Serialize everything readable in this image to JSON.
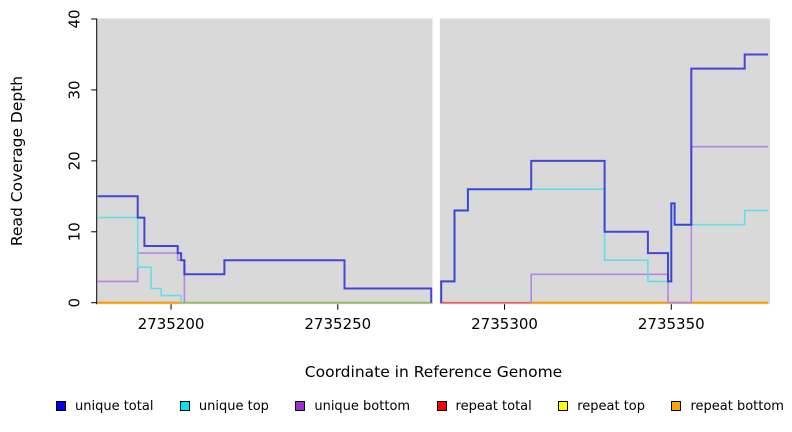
{
  "chart_data": {
    "type": "line",
    "subtype": "step-coverage",
    "title": "",
    "xlabel": "Coordinate in Reference Genome",
    "ylabel": "Read Coverage Depth",
    "panel_bg": "#d9d9d9",
    "x_axis": {
      "ticks": [
        2735200,
        2735250,
        2735300,
        2735350
      ],
      "range": [
        2735177.7,
        2735379.6
      ]
    },
    "y_axis": {
      "ticks": [
        0,
        10,
        20,
        30,
        40
      ],
      "range": [
        -0.21,
        40.07
      ]
    },
    "no_data_gap": {
      "from": 2735278,
      "to": 2735281
    },
    "series": [
      {
        "name": "unique total",
        "color": "#2b2bd5",
        "legend_color": "#0000ee",
        "width": 2,
        "segments": [
          [
            [
              2735178,
              15
            ],
            [
              2735190,
              12
            ],
            [
              2735192,
              8
            ],
            [
              2735202,
              7
            ],
            [
              2735203,
              6
            ],
            [
              2735204,
              4
            ],
            [
              2735216,
              6
            ],
            [
              2735252,
              2
            ],
            [
              2735278,
              0
            ]
          ],
          [
            [
              2735281,
              0
            ],
            [
              2735281,
              3
            ],
            [
              2735285,
              13
            ],
            [
              2735289,
              16
            ],
            [
              2735308,
              20
            ],
            [
              2735330,
              10
            ],
            [
              2735343,
              7
            ],
            [
              2735349,
              3
            ],
            [
              2735350,
              14
            ],
            [
              2735351,
              11
            ],
            [
              2735356,
              33
            ],
            [
              2735372,
              35
            ],
            [
              2735379,
              35
            ]
          ]
        ]
      },
      {
        "name": "unique top",
        "color": "#63dfe7",
        "legend_color": "#00e5ee",
        "width": 1.6,
        "segments": [
          [
            [
              2735178,
              12
            ],
            [
              2735190,
              5
            ],
            [
              2735194,
              2
            ],
            [
              2735197,
              1
            ],
            [
              2735203,
              0
            ]
          ],
          [
            [
              2735281,
              0
            ],
            [
              2735281,
              3
            ],
            [
              2735285,
              13
            ],
            [
              2735289,
              16
            ],
            [
              2735330,
              6
            ],
            [
              2735343,
              3
            ],
            [
              2735350,
              14
            ],
            [
              2735351,
              11
            ],
            [
              2735372,
              13
            ],
            [
              2735379,
              13
            ]
          ]
        ]
      },
      {
        "name": "unique bottom",
        "color": "#b289e2",
        "legend_color": "#9932cc",
        "width": 1.6,
        "segments": [
          [
            [
              2735178,
              3
            ],
            [
              2735190,
              7
            ],
            [
              2735202,
              6
            ],
            [
              2735204,
              0
            ]
          ],
          [
            [
              2735308,
              0
            ],
            [
              2735308,
              4
            ],
            [
              2735349,
              0
            ],
            [
              2735356,
              0
            ],
            [
              2735356,
              22
            ],
            [
              2735379,
              22
            ]
          ]
        ]
      },
      {
        "name": "repeat total",
        "color": "#ff0000",
        "legend_color": "#ff0000",
        "width": 1.4,
        "segments": [
          [
            [
              2735178,
              0
            ],
            [
              2735379,
              0
            ]
          ]
        ]
      },
      {
        "name": "repeat top",
        "color": "#ffff00",
        "legend_color": "#ffff00",
        "width": 1.4,
        "segments": [
          [
            [
              2735178,
              0
            ],
            [
              2735379,
              0
            ]
          ]
        ]
      },
      {
        "name": "repeat bottom",
        "color": "#ff9c00",
        "legend_color": "#ffa500",
        "width": 1.8,
        "segments": [
          [
            [
              2735178,
              0
            ],
            [
              2735379,
              0
            ]
          ]
        ]
      }
    ],
    "baseline_overlay": [
      {
        "from": 2735178,
        "to": 2735203,
        "color": "#ff9c00",
        "width": 1.8
      },
      {
        "from": 2735203,
        "to": 2735278,
        "color": "#7cc47c",
        "width": 1.5
      },
      {
        "from": 2735281,
        "to": 2735308,
        "color": "#e0607a",
        "width": 1.5
      },
      {
        "from": 2735308,
        "to": 2735379,
        "color": "#ff9c00",
        "width": 1.8
      }
    ],
    "legend_position": "bottom",
    "grid": false,
    "legend": [
      {
        "label": "unique total",
        "color": "#0000ee"
      },
      {
        "label": "unique top",
        "color": "#00e5ee"
      },
      {
        "label": "unique bottom",
        "color": "#9932cc"
      },
      {
        "label": "repeat total",
        "color": "#ff0000"
      },
      {
        "label": "repeat top",
        "color": "#ffff00"
      },
      {
        "label": "repeat bottom",
        "color": "#ffa500"
      }
    ]
  }
}
